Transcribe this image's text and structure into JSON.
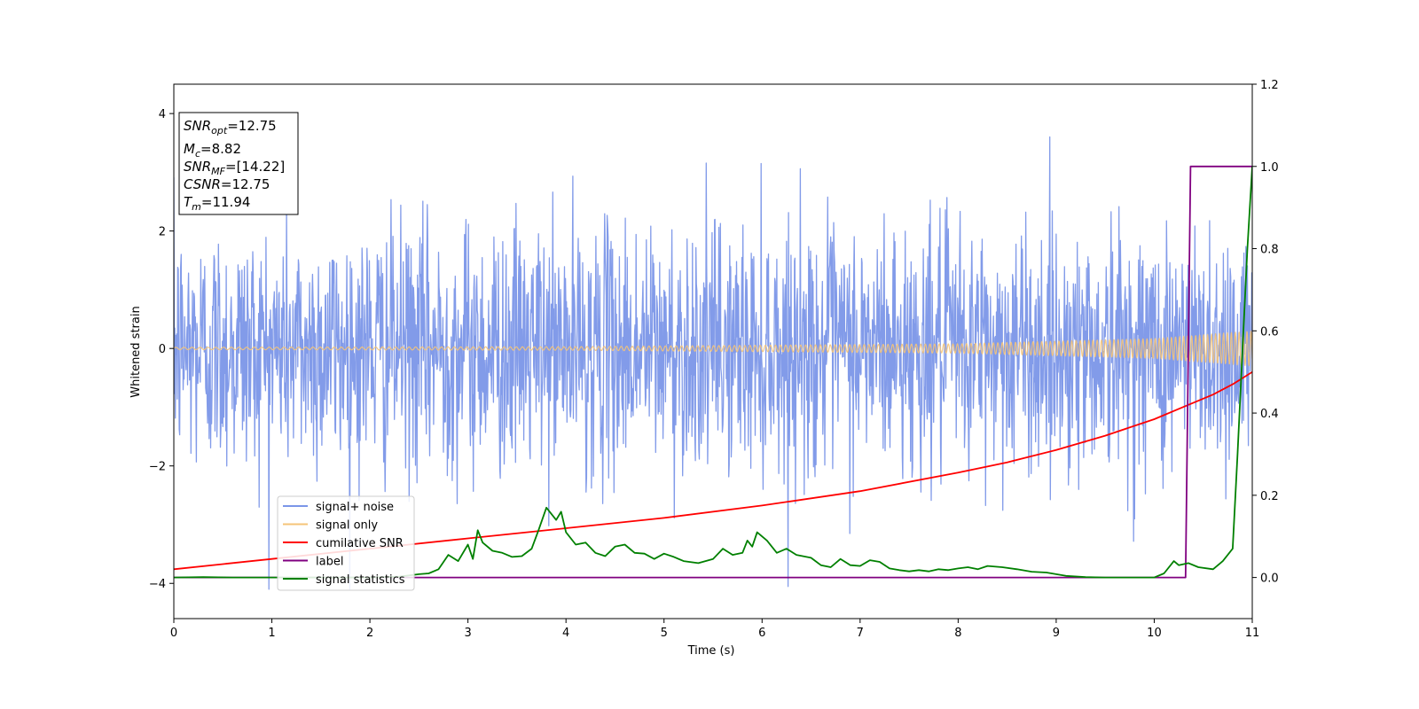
{
  "chart_data": {
    "type": "line",
    "xlabel": "Time (s)",
    "ylabel": "Whitened strain",
    "xlim": [
      0,
      11
    ],
    "ylim_left": [
      -4.6,
      4.5
    ],
    "ylim_right": [
      -0.1,
      1.2
    ],
    "x_ticks": [
      0,
      1,
      2,
      3,
      4,
      5,
      6,
      7,
      8,
      9,
      10,
      11
    ],
    "y_ticks_left": [
      -4,
      -2,
      0,
      2,
      4
    ],
    "y_ticks_right": [
      0.0,
      0.2,
      0.4,
      0.6,
      0.8,
      1.0,
      1.2
    ],
    "y_tick_labels_right": [
      "0.0",
      "0.2",
      "0.4",
      "0.6",
      "0.8",
      "1.0",
      "1.2"
    ],
    "legend_position": "lower-left",
    "info_box": {
      "lines": [
        {
          "sym": "SNR",
          "sub": "opt",
          "val": "=12.75"
        },
        {
          "sym": "M",
          "sub": "c",
          "val": "=8.82"
        },
        {
          "sym": "SNR",
          "sub": "MF",
          "val": "=[14.22]"
        },
        {
          "sym": "CSNR",
          "sub": "",
          "val": "=12.75"
        },
        {
          "sym": "T",
          "sub": "m",
          "val": "=11.94"
        }
      ]
    },
    "series": [
      {
        "name": "signal+ noise",
        "axis": "left",
        "color": "#7b96e8",
        "kind": "noise",
        "sigma": 1.05
      },
      {
        "name": "signal only",
        "axis": "left",
        "color": "#f5c478",
        "kind": "chirp",
        "amplitude_points": [
          [
            0,
            0.02
          ],
          [
            4,
            0.03
          ],
          [
            8,
            0.08
          ],
          [
            10,
            0.17
          ],
          [
            11,
            0.3
          ]
        ]
      },
      {
        "name": "cumilative SNR",
        "axis": "right",
        "color": "#ff0000",
        "kind": "curve",
        "points": [
          [
            0,
            0.02
          ],
          [
            1,
            0.045
          ],
          [
            2,
            0.07
          ],
          [
            3,
            0.095
          ],
          [
            4,
            0.12
          ],
          [
            5,
            0.145
          ],
          [
            6,
            0.175
          ],
          [
            7,
            0.21
          ],
          [
            8,
            0.255
          ],
          [
            8.5,
            0.28
          ],
          [
            9,
            0.31
          ],
          [
            9.5,
            0.345
          ],
          [
            10,
            0.385
          ],
          [
            10.3,
            0.415
          ],
          [
            10.6,
            0.445
          ],
          [
            10.8,
            0.47
          ],
          [
            11,
            0.5
          ]
        ]
      },
      {
        "name": "label",
        "axis": "right",
        "color": "#800080",
        "kind": "curve",
        "points": [
          [
            0,
            0.0
          ],
          [
            10.32,
            0.0
          ],
          [
            10.37,
            1.0
          ],
          [
            11,
            1.0
          ]
        ]
      },
      {
        "name": "signal statistics",
        "axis": "right",
        "color": "#008000",
        "kind": "curve",
        "points": [
          [
            0,
            0.0
          ],
          [
            0.3,
            0.001
          ],
          [
            0.6,
            0.0
          ],
          [
            1.0,
            0.0
          ],
          [
            1.5,
            0.0
          ],
          [
            2.0,
            0.0
          ],
          [
            2.3,
            0.002
          ],
          [
            2.5,
            0.008
          ],
          [
            2.6,
            0.01
          ],
          [
            2.7,
            0.02
          ],
          [
            2.8,
            0.055
          ],
          [
            2.9,
            0.04
          ],
          [
            3.0,
            0.08
          ],
          [
            3.05,
            0.045
          ],
          [
            3.1,
            0.115
          ],
          [
            3.15,
            0.085
          ],
          [
            3.25,
            0.065
          ],
          [
            3.35,
            0.06
          ],
          [
            3.45,
            0.05
          ],
          [
            3.55,
            0.052
          ],
          [
            3.65,
            0.07
          ],
          [
            3.72,
            0.115
          ],
          [
            3.8,
            0.17
          ],
          [
            3.9,
            0.14
          ],
          [
            3.95,
            0.16
          ],
          [
            4.0,
            0.11
          ],
          [
            4.1,
            0.08
          ],
          [
            4.2,
            0.085
          ],
          [
            4.3,
            0.06
          ],
          [
            4.4,
            0.052
          ],
          [
            4.5,
            0.075
          ],
          [
            4.6,
            0.08
          ],
          [
            4.7,
            0.06
          ],
          [
            4.8,
            0.058
          ],
          [
            4.9,
            0.045
          ],
          [
            5.0,
            0.058
          ],
          [
            5.1,
            0.05
          ],
          [
            5.2,
            0.04
          ],
          [
            5.35,
            0.035
          ],
          [
            5.5,
            0.045
          ],
          [
            5.6,
            0.07
          ],
          [
            5.7,
            0.055
          ],
          [
            5.8,
            0.06
          ],
          [
            5.85,
            0.09
          ],
          [
            5.9,
            0.075
          ],
          [
            5.95,
            0.11
          ],
          [
            6.05,
            0.09
          ],
          [
            6.15,
            0.06
          ],
          [
            6.25,
            0.07
          ],
          [
            6.35,
            0.055
          ],
          [
            6.5,
            0.048
          ],
          [
            6.6,
            0.03
          ],
          [
            6.7,
            0.025
          ],
          [
            6.8,
            0.045
          ],
          [
            6.9,
            0.03
          ],
          [
            7.0,
            0.028
          ],
          [
            7.1,
            0.042
          ],
          [
            7.2,
            0.038
          ],
          [
            7.3,
            0.022
          ],
          [
            7.4,
            0.018
          ],
          [
            7.5,
            0.015
          ],
          [
            7.6,
            0.018
          ],
          [
            7.7,
            0.015
          ],
          [
            7.8,
            0.02
          ],
          [
            7.9,
            0.018
          ],
          [
            8.0,
            0.022
          ],
          [
            8.1,
            0.025
          ],
          [
            8.2,
            0.02
          ],
          [
            8.3,
            0.028
          ],
          [
            8.45,
            0.025
          ],
          [
            8.6,
            0.02
          ],
          [
            8.75,
            0.014
          ],
          [
            8.9,
            0.012
          ],
          [
            9.0,
            0.008
          ],
          [
            9.1,
            0.004
          ],
          [
            9.3,
            0.001
          ],
          [
            9.5,
            0.0
          ],
          [
            9.8,
            0.0
          ],
          [
            10.0,
            0.0
          ],
          [
            10.1,
            0.01
          ],
          [
            10.2,
            0.04
          ],
          [
            10.25,
            0.03
          ],
          [
            10.35,
            0.035
          ],
          [
            10.45,
            0.025
          ],
          [
            10.6,
            0.02
          ],
          [
            10.7,
            0.04
          ],
          [
            10.8,
            0.07
          ],
          [
            10.85,
            0.3
          ],
          [
            10.9,
            0.55
          ],
          [
            10.95,
            0.8
          ],
          [
            11.0,
            1.0
          ]
        ]
      }
    ]
  }
}
